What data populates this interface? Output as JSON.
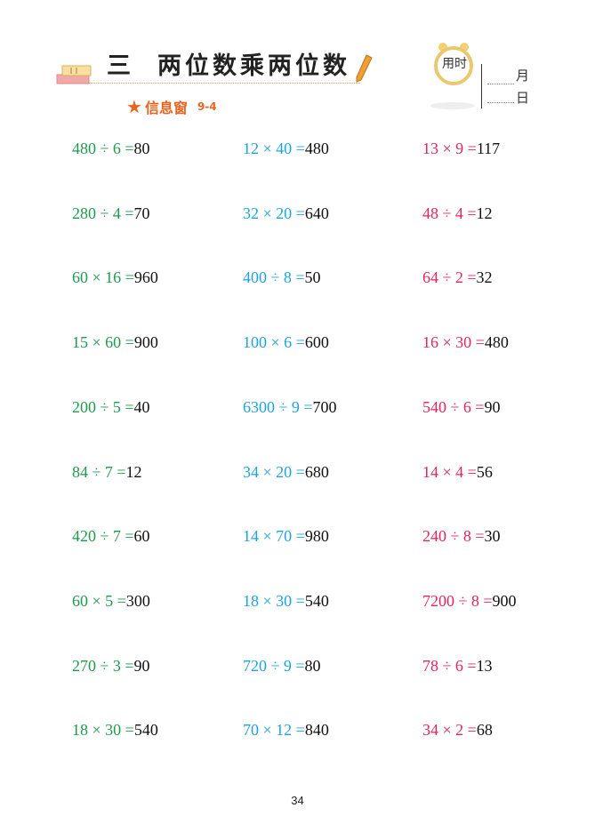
{
  "header": {
    "unit_number": "三",
    "unit_title": "两位数乘两位数",
    "info_label": "信息窗",
    "info_code": "9-4",
    "clock_label": "用时",
    "month_label": "月",
    "day_label": "日"
  },
  "colors": {
    "col1": "#1f9a4e",
    "col2": "#1ea3e0",
    "col3": "#e3245f",
    "accent": "#e86420"
  },
  "columns": [
    [
      {
        "expr": "480 ÷ 6 =",
        "answer": "80"
      },
      {
        "expr": "280 ÷ 4 =",
        "answer": "70"
      },
      {
        "expr": "60 × 16 =",
        "answer": "960"
      },
      {
        "expr": "15 × 60 =",
        "answer": "900"
      },
      {
        "expr": "200 ÷ 5 =",
        "answer": "40"
      },
      {
        "expr": "84 ÷ 7 =",
        "answer": "12"
      },
      {
        "expr": "420 ÷ 7 =",
        "answer": "60"
      },
      {
        "expr": "60 × 5 =",
        "answer": "300"
      },
      {
        "expr": "270 ÷ 3 =",
        "answer": "90"
      },
      {
        "expr": "18 × 30 =",
        "answer": "540"
      }
    ],
    [
      {
        "expr": "12 × 40 =",
        "answer": "480"
      },
      {
        "expr": "32 × 20 =",
        "answer": "640"
      },
      {
        "expr": "400 ÷ 8 =",
        "answer": "50"
      },
      {
        "expr": "100 × 6 =",
        "answer": "600"
      },
      {
        "expr": "6300 ÷ 9 =",
        "answer": "700"
      },
      {
        "expr": "34 × 20 =",
        "answer": "680"
      },
      {
        "expr": "14 × 70 =",
        "answer": "980"
      },
      {
        "expr": "18 × 30 =",
        "answer": "540"
      },
      {
        "expr": "720 ÷ 9 =",
        "answer": "80"
      },
      {
        "expr": "70 × 12 =",
        "answer": "840"
      }
    ],
    [
      {
        "expr": "13 × 9 =",
        "answer": "117"
      },
      {
        "expr": "48 ÷ 4 =",
        "answer": "12"
      },
      {
        "expr": "64 ÷ 2 =",
        "answer": "32"
      },
      {
        "expr": "16 × 30 =",
        "answer": "480"
      },
      {
        "expr": "540 ÷ 6 =",
        "answer": "90"
      },
      {
        "expr": "14 × 4 =",
        "answer": "56"
      },
      {
        "expr": "240 ÷ 8 =",
        "answer": "30"
      },
      {
        "expr": "7200 ÷ 8 =",
        "answer": "900"
      },
      {
        "expr": "78 ÷ 6 =",
        "answer": "13"
      },
      {
        "expr": "34 × 2 =",
        "answer": "68"
      }
    ]
  ],
  "page_number": "34"
}
